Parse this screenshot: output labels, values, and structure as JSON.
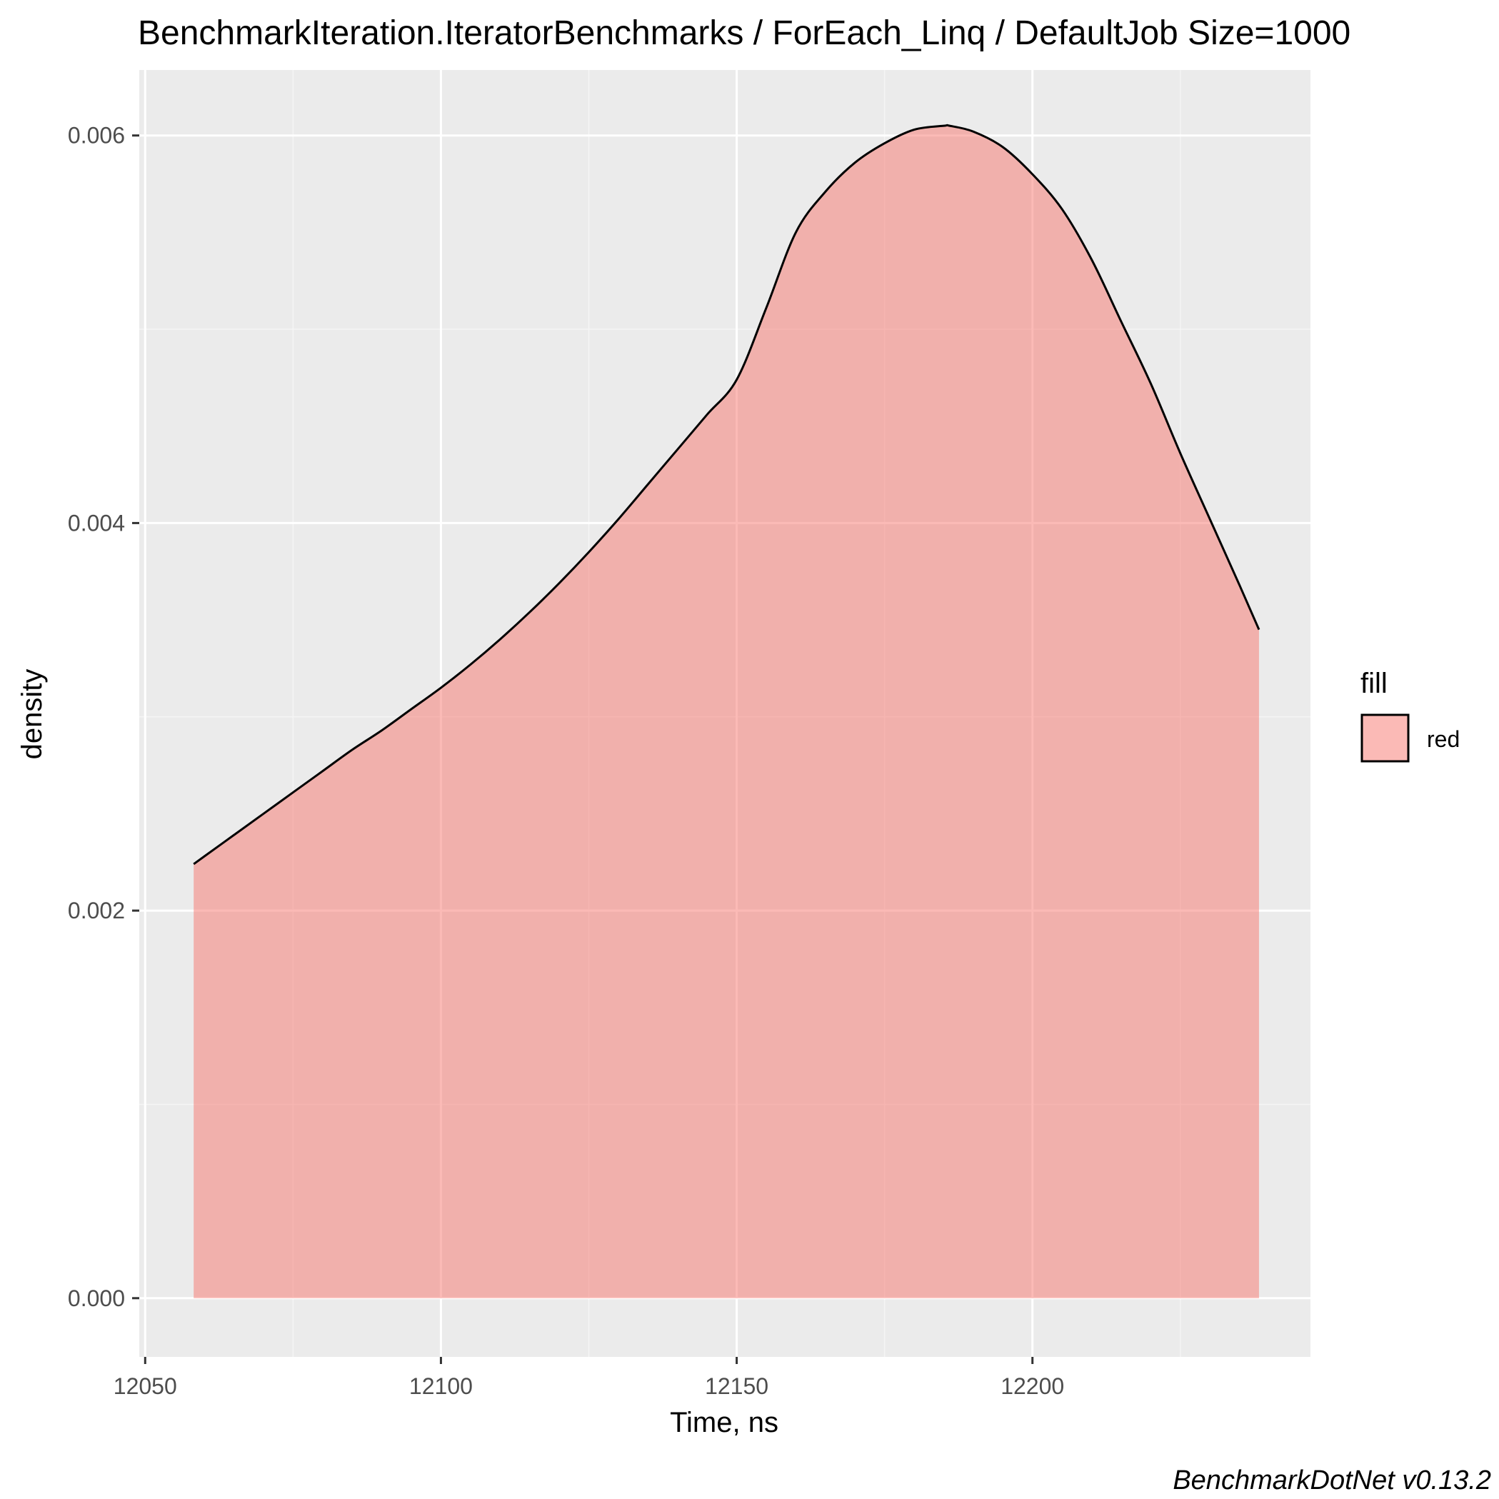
{
  "chart_data": {
    "type": "area",
    "title": "BenchmarkIteration.IteratorBenchmarks / ForEach_Linq / DefaultJob Size=1000",
    "xlabel": "Time, ns",
    "ylabel": "density",
    "xlim": [
      12049,
      12247
    ],
    "ylim": [
      -0.000303,
      0.006338
    ],
    "x_ticks": [
      12050,
      12100,
      12150,
      12200
    ],
    "x_tick_labels": [
      "12050",
      "12100",
      "12150",
      "12200"
    ],
    "x_minor_ticks": [
      12075,
      12125,
      12175,
      12225
    ],
    "y_ticks": [
      0.0,
      0.002,
      0.004,
      0.006
    ],
    "y_tick_labels": [
      "0.000",
      "0.002",
      "0.004",
      "0.006"
    ],
    "y_minor_ticks": [
      0.001,
      0.003,
      0.005
    ],
    "grid": true,
    "series": [
      {
        "name": "red",
        "fill": "#F8766D",
        "fill_opacity": 0.5,
        "stroke": "#000000",
        "x": [
          12058.2,
          12060,
          12065,
          12070,
          12075,
          12080,
          12085,
          12090,
          12095,
          12100,
          12105,
          12110,
          12115,
          12120,
          12125,
          12130,
          12135,
          12140,
          12145,
          12150,
          12155,
          12160,
          12165,
          12170,
          12175,
          12180,
          12185,
          12186,
          12190,
          12195,
          12200,
          12205,
          12210,
          12215,
          12220,
          12225,
          12230,
          12235,
          12238.3
        ],
        "y": [
          0.00224,
          0.00228,
          0.00239,
          0.0025,
          0.00261,
          0.00272,
          0.00283,
          0.00293,
          0.00304,
          0.00315,
          0.00327,
          0.0034,
          0.00354,
          0.00369,
          0.00385,
          0.00402,
          0.0042,
          0.00438,
          0.00456,
          0.00474,
          0.00511,
          0.0055,
          0.00571,
          0.00586,
          0.00596,
          0.00603,
          0.00605,
          0.00605,
          0.00602,
          0.00594,
          0.0058,
          0.00562,
          0.00536,
          0.00504,
          0.00472,
          0.00436,
          0.00402,
          0.00368,
          0.00345
        ]
      }
    ],
    "legend": {
      "title": "fill",
      "entries": [
        {
          "label": "red",
          "fill": "#F8766D"
        }
      ],
      "position": "right"
    }
  },
  "caption": "BenchmarkDotNet v0.13.2",
  "colors": {
    "panel_background": "#EBEBEB",
    "grid_major": "#FFFFFF",
    "grid_minor": "#F5F5F5",
    "tick_text": "#4D4D4D",
    "fill": "#F8766D"
  }
}
